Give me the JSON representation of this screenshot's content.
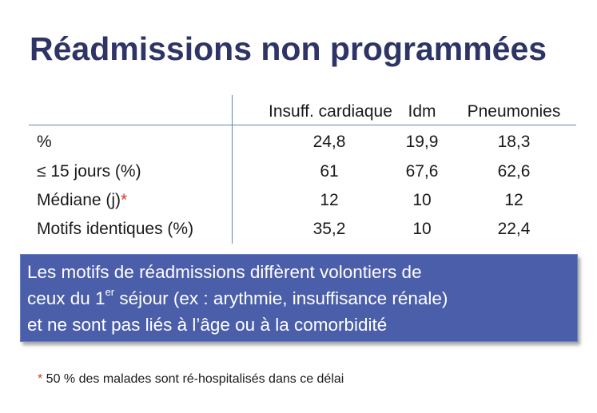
{
  "title": "Réadmissions non programmées",
  "table": {
    "headers": [
      "",
      "Insuff. cardiaque",
      "Idm",
      "Pneumonies"
    ],
    "rows": [
      {
        "label": "%",
        "values": [
          "24,8",
          "19,9",
          "18,3"
        ]
      },
      {
        "label": "≤ 15 jours (%)",
        "values": [
          "61",
          "67,6",
          "62,6"
        ]
      },
      {
        "label": "Médiane (j)",
        "label_mark": "*",
        "values": [
          "12",
          "10",
          "12"
        ]
      },
      {
        "label": "Motifs identiques (%)",
        "values": [
          "35,2",
          "10",
          "22,4"
        ]
      }
    ]
  },
  "callout": {
    "line1": "Les motifs de réadmissions diffèrent volontiers de",
    "line2_pre": "ceux du 1",
    "line2_sup": "er",
    "line2_post": " séjour (ex : arythmie, insuffisance rénale)",
    "line3": "et ne sont pas liés à l’âge ou à la comorbidité"
  },
  "footnote": {
    "mark": "*",
    "text": " 50 % des malades sont ré-hospitalisés dans ce délai"
  },
  "colors": {
    "title": "#2e3566",
    "rule": "#5b87b8",
    "callout_bg": "#4a5ea9",
    "asterisk": "#d9342b"
  }
}
